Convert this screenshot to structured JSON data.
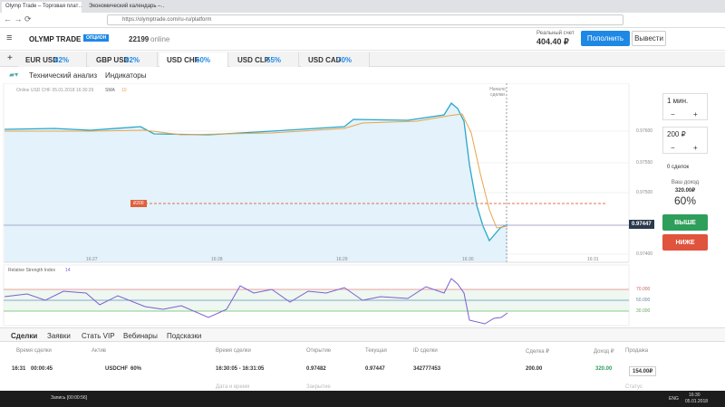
{
  "browser": {
    "tabs": [
      "Olymp Trade – Торговая плат…",
      "Экономический календарь –…"
    ],
    "url": "https://olymptrade.com/ru-ru/platform"
  },
  "header": {
    "logo": "OLYMP TRADE",
    "badge": "ОПЦИОН",
    "online_count": "22199",
    "online_label": "online",
    "account_label": "Реальный счет",
    "balance": "404.40 ₽",
    "deposit": "Пополнить",
    "withdraw": "Вывести"
  },
  "assets": [
    {
      "name": "EUR USD",
      "payout": "82%"
    },
    {
      "name": "GBP USD",
      "payout": "82%"
    },
    {
      "name": "USD CHF",
      "payout": "60%"
    },
    {
      "name": "USD CLP",
      "payout": "55%"
    },
    {
      "name": "USD CAD",
      "payout": "70%"
    }
  ],
  "toolbar": {
    "analysis": "Технический анализ",
    "indicators": "Индикаторы"
  },
  "chart": {
    "legend": "Online USD CHF 05.01.2018 16:30:29",
    "sma": "SMA",
    "sma_period": "10",
    "start_label": "Начало сделки",
    "price_ticks": [
      "0.97600",
      "0.97550",
      "0.97500",
      "0.97400"
    ],
    "current_price": "0.97447",
    "time_ticks": [
      "16:27",
      "16:28",
      "16:29",
      "16:30",
      "16:31"
    ],
    "trade_marker": "₽200"
  },
  "panel": {
    "duration": "1 мин.",
    "minus": "−",
    "plus": "+",
    "amount": "200 ₽",
    "trades": "0 сделок",
    "income_label": "Ваш доход",
    "income": "320.00₽",
    "payout": "60%",
    "up": "ВЫШЕ",
    "down": "НИЖЕ"
  },
  "rsi": {
    "name": "Relative Strength Index",
    "period": "14",
    "levels": [
      "70.000",
      "50.000",
      "30.000"
    ]
  },
  "bottom_tabs": [
    "Сделки",
    "Заявки",
    "Стать VIP",
    "Вебинары",
    "Подсказки"
  ],
  "table": {
    "headers": [
      "Время сделки",
      "Актив",
      "Время сделки",
      "Открытие",
      "Текущая",
      "ID сделки",
      "Сделка ₽",
      "Доход ₽",
      "Продажа"
    ],
    "rows": [
      [
        "16:31",
        "00:00:45",
        "USDCHF",
        "60%",
        "16:30:05 - 16:31:05",
        "0.97482",
        "0.97447",
        "342777453",
        "200.00",
        "320.00",
        "154.00₽"
      ]
    ],
    "next_headers": [
      "Дата и время",
      "Закрытие",
      "Статус"
    ]
  },
  "taskbar": {
    "recording": "Запись [00:00:56]",
    "lang": "ENG",
    "time": "16:30",
    "date": "05.01.2018"
  }
}
